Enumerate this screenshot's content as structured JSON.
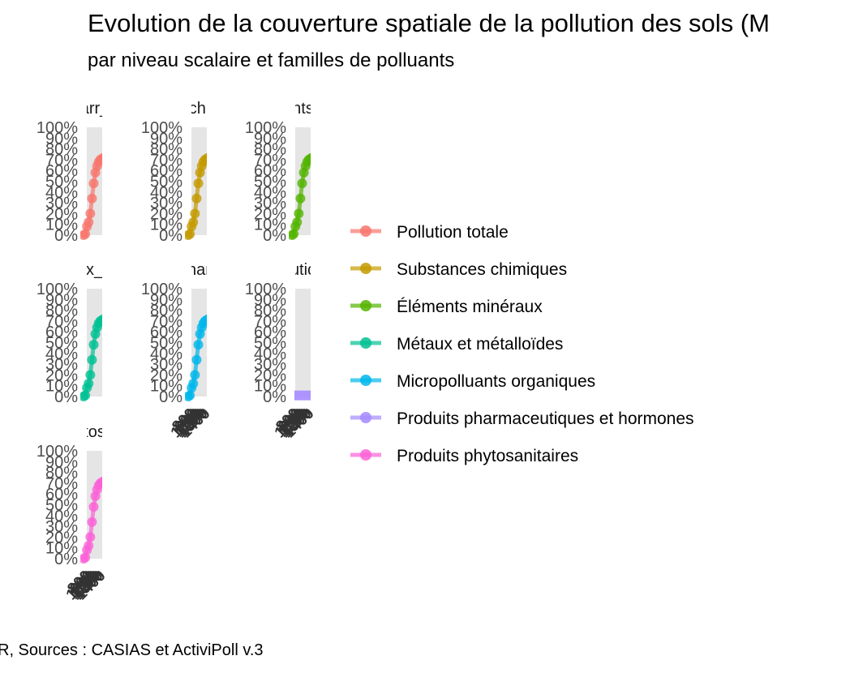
{
  "chart_data": {
    "type": "line",
    "title": "Evolution de la couverture spatiale de la pollution des sols (M",
    "subtitle": "par niveau scalaire et familles de polluants",
    "caption": "R, Sources : CASIAS et ActiviPoll v.3",
    "y_ticks": [
      "100%",
      "90%",
      "80%",
      "70%",
      "60%",
      "50%",
      "40%",
      "30%",
      "20%",
      "10%",
      "0%"
    ],
    "ylim": [
      0,
      100
    ],
    "x_tick_labels": [
      "800",
      "900",
      "1000",
      "1100",
      "1200",
      "1300",
      "1400"
    ],
    "legend": [
      {
        "label": "Pollution totale",
        "color": "#F8766D"
      },
      {
        "label": "Substances chimiques",
        "color": "#C49A00"
      },
      {
        "label": "Éléments minéraux",
        "color": "#53B400"
      },
      {
        "label": "Métaux et métalloïdes",
        "color": "#00C094"
      },
      {
        "label": "Micropolluants organiques",
        "color": "#00B6EB"
      },
      {
        "label": "Produits pharmaceutiques et hormones",
        "color": "#A58AFF"
      },
      {
        "label": "Produits phytosanitaires",
        "color": "#FB61D7"
      }
    ],
    "panels": [
      {
        "strip": "arr_",
        "series": "Pollution totale",
        "color": "#F8766D",
        "x_axis": false,
        "values": [
          0,
          1,
          8,
          12,
          20,
          34,
          48,
          58,
          64,
          68,
          70,
          71,
          72
        ]
      },
      {
        "strip": "chi",
        "series": "Substances chimiques",
        "color": "#C49A00",
        "x_axis": false,
        "values": [
          0,
          1,
          8,
          12,
          20,
          34,
          48,
          58,
          64,
          68,
          70,
          71,
          72
        ]
      },
      {
        "strip": "nts",
        "series": "Éléments minéraux",
        "color": "#53B400",
        "x_axis": false,
        "values": [
          0,
          1,
          8,
          12,
          20,
          34,
          48,
          58,
          64,
          68,
          70,
          71,
          72
        ]
      },
      {
        "strip": "x_",
        "series": "Métaux et métalloïdes",
        "color": "#00C094",
        "x_axis": false,
        "values": [
          0,
          1,
          8,
          12,
          20,
          34,
          48,
          58,
          64,
          68,
          70,
          71,
          72
        ]
      },
      {
        "strip": "nar",
        "series": "Micropolluants organiques",
        "color": "#00B6EB",
        "x_axis": true,
        "values": [
          0,
          1,
          8,
          12,
          20,
          34,
          48,
          58,
          64,
          68,
          70,
          71,
          72
        ]
      },
      {
        "strip": "utic",
        "series": "Produits pharmaceutiques et hormones",
        "color": "#A58AFF",
        "x_axis": true,
        "values": [
          1,
          1,
          1,
          1,
          1,
          1,
          1,
          1,
          1,
          1,
          1,
          1,
          1
        ]
      },
      {
        "strip": "tos",
        "series": "Produits phytosanitaires",
        "color": "#FB61D7",
        "x_axis": true,
        "values": [
          0,
          1,
          8,
          12,
          20,
          34,
          48,
          58,
          64,
          68,
          70,
          71,
          72
        ]
      }
    ]
  }
}
